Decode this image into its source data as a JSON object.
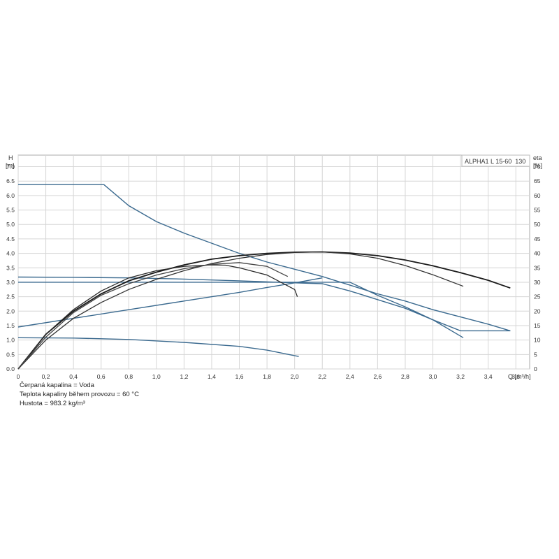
{
  "chart_data": {
    "type": "line",
    "title": "ALPHA1 L 15-60  130",
    "left_axis": {
      "label_line1": "H",
      "label_line2": "[m]",
      "range": [
        0,
        7.4
      ],
      "ticks": [
        "0.0",
        "0.5",
        "1.0",
        "1.5",
        "2.0",
        "2.5",
        "3.0",
        "3.5",
        "4.0",
        "4.5",
        "5.0",
        "5.5",
        "6.0",
        "6.5",
        "7.0"
      ]
    },
    "right_axis": {
      "label_line1": "eta",
      "label_line2": "[%]",
      "range": [
        0,
        74
      ],
      "ticks": [
        "0",
        "5",
        "10",
        "15",
        "20",
        "25",
        "30",
        "35",
        "40",
        "45",
        "50",
        "55",
        "60",
        "65",
        "70"
      ]
    },
    "x_axis": {
      "label": "Q [m³/h]",
      "range": [
        0,
        3.7
      ],
      "ticks": [
        "0",
        "0,2",
        "0,4",
        "0,6",
        "0,8",
        "1,0",
        "1,2",
        "1,4",
        "1,6",
        "1,8",
        "2,0",
        "2,2",
        "2,4",
        "2,6",
        "2,8",
        "3,0",
        "3,2",
        "3,4",
        "3,6"
      ]
    },
    "grid": true,
    "head_series": [
      {
        "color": "#3b6a8f",
        "points": [
          [
            0,
            6.38
          ],
          [
            0.62,
            6.38
          ],
          [
            0.8,
            5.65
          ],
          [
            1.0,
            5.1
          ],
          [
            1.2,
            4.7
          ],
          [
            1.4,
            4.35
          ],
          [
            1.6,
            4.0
          ],
          [
            1.8,
            3.7
          ],
          [
            2.0,
            3.45
          ],
          [
            2.2,
            3.2
          ],
          [
            2.4,
            2.9
          ],
          [
            2.6,
            2.6
          ],
          [
            2.8,
            2.35
          ],
          [
            3.0,
            2.05
          ],
          [
            3.2,
            1.8
          ],
          [
            3.4,
            1.55
          ],
          [
            3.56,
            1.32
          ]
        ]
      },
      {
        "color": "#3b6a8f",
        "points": [
          [
            0,
            3.18
          ],
          [
            0.4,
            3.17
          ],
          [
            0.8,
            3.15
          ],
          [
            1.2,
            3.11
          ],
          [
            1.6,
            3.05
          ],
          [
            2.0,
            2.98
          ],
          [
            2.2,
            2.95
          ],
          [
            2.4,
            2.7
          ],
          [
            2.6,
            2.4
          ],
          [
            2.8,
            2.1
          ],
          [
            3.0,
            1.7
          ],
          [
            3.2,
            1.32
          ],
          [
            3.56,
            1.32
          ]
        ]
      },
      {
        "color": "#3b6a8f",
        "points": [
          [
            0,
            3.0
          ],
          [
            0.5,
            3.0
          ],
          [
            1.0,
            3.0
          ],
          [
            1.5,
            3.0
          ],
          [
            2.0,
            3.0
          ],
          [
            2.4,
            3.0
          ],
          [
            2.6,
            2.55
          ],
          [
            2.8,
            2.15
          ],
          [
            3.0,
            1.7
          ],
          [
            3.22,
            1.08
          ]
        ]
      },
      {
        "color": "#3b6a8f",
        "points": [
          [
            0,
            1.45
          ],
          [
            0.4,
            1.75
          ],
          [
            0.8,
            2.05
          ],
          [
            1.2,
            2.35
          ],
          [
            1.6,
            2.65
          ],
          [
            1.8,
            2.82
          ],
          [
            2.0,
            2.98
          ],
          [
            2.2,
            3.15
          ]
        ]
      },
      {
        "color": "#3b6a8f",
        "points": [
          [
            0,
            1.08
          ],
          [
            0.4,
            1.07
          ],
          [
            0.8,
            1.02
          ],
          [
            1.2,
            0.92
          ],
          [
            1.6,
            0.78
          ],
          [
            1.8,
            0.65
          ],
          [
            2.03,
            0.43
          ]
        ]
      }
    ],
    "eta_series": [
      {
        "color": "#1a1a1a",
        "points": [
          [
            0,
            0
          ],
          [
            0.2,
            12
          ],
          [
            0.4,
            20
          ],
          [
            0.6,
            26
          ],
          [
            0.8,
            30.5
          ],
          [
            1.0,
            33.5
          ],
          [
            1.2,
            36
          ],
          [
            1.4,
            38
          ],
          [
            1.6,
            39.2
          ],
          [
            1.8,
            40
          ],
          [
            2.0,
            40.4
          ],
          [
            2.2,
            40.5
          ],
          [
            2.4,
            40.1
          ],
          [
            2.6,
            39.2
          ],
          [
            2.8,
            37.7
          ],
          [
            3.0,
            35.7
          ],
          [
            3.2,
            33.3
          ],
          [
            3.4,
            30.7
          ],
          [
            3.56,
            28
          ]
        ]
      },
      {
        "color": "#333333",
        "points": [
          [
            0,
            0
          ],
          [
            0.2,
            10
          ],
          [
            0.4,
            17.5
          ],
          [
            0.6,
            23
          ],
          [
            0.8,
            27.5
          ],
          [
            1.0,
            31
          ],
          [
            1.2,
            34
          ],
          [
            1.4,
            36.5
          ],
          [
            1.6,
            38.3
          ],
          [
            1.8,
            39.6
          ],
          [
            2.0,
            40.3
          ],
          [
            2.2,
            40.5
          ],
          [
            2.4,
            39.8
          ],
          [
            2.6,
            38.3
          ],
          [
            2.8,
            35.8
          ],
          [
            3.0,
            32.6
          ],
          [
            3.22,
            28.6
          ]
        ]
      },
      {
        "color": "#2a2a2a",
        "points": [
          [
            0,
            0
          ],
          [
            0.2,
            12
          ],
          [
            0.4,
            20.5
          ],
          [
            0.6,
            27
          ],
          [
            0.8,
            31.5
          ],
          [
            1.0,
            34
          ],
          [
            1.2,
            35.5
          ],
          [
            1.4,
            36
          ],
          [
            1.5,
            35.9
          ],
          [
            1.6,
            35
          ],
          [
            1.8,
            32.5
          ],
          [
            2.0,
            27.5
          ],
          [
            2.02,
            25
          ]
        ]
      },
      {
        "color": "#444444",
        "points": [
          [
            0,
            0
          ],
          [
            0.2,
            11
          ],
          [
            0.4,
            19.5
          ],
          [
            0.6,
            25.5
          ],
          [
            0.8,
            29.5
          ],
          [
            1.0,
            32.5
          ],
          [
            1.2,
            34.7
          ],
          [
            1.4,
            36.2
          ],
          [
            1.6,
            36.8
          ],
          [
            1.8,
            35.5
          ],
          [
            1.95,
            32
          ]
        ]
      }
    ],
    "notes": [
      "Čerpaná kapalina = Voda",
      "Teplota kapaliny během provozu = 60 °C",
      "Hustota = 983.2 kg/m³"
    ]
  }
}
